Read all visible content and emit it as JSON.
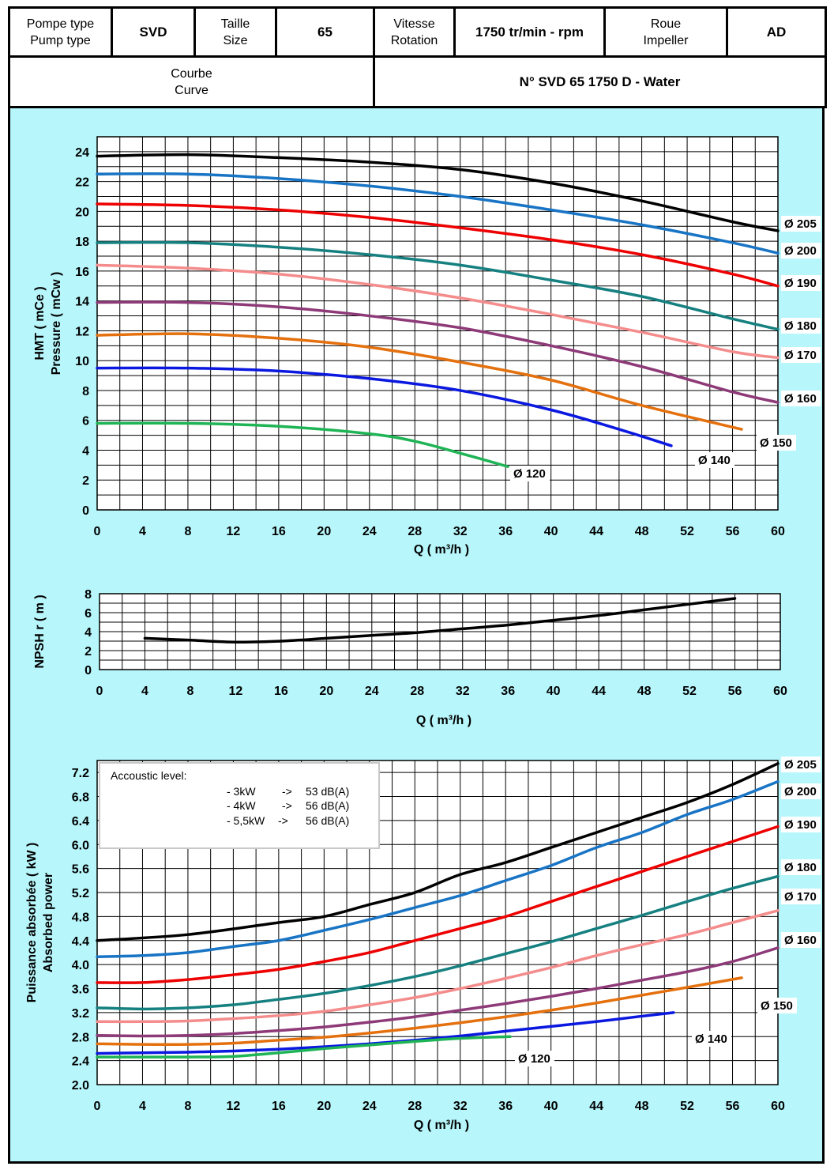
{
  "header": {
    "pump_type_label_fr": "Pompe type",
    "pump_type_label_en": "Pump type",
    "pump_type": "SVD",
    "size_label_fr": "Taille",
    "size_label_en": "Size",
    "size": "65",
    "speed_label_fr": "Vitesse",
    "speed_label_en": "Rotation",
    "speed": "1750 tr/min - rpm",
    "impeller_label_fr": "Roue",
    "impeller_label_en": "Impeller",
    "impeller": "AD",
    "curve_label_fr": "Courbe",
    "curve_label_en": "Curve",
    "curve_name": "N° SVD 65 1750 D - Water"
  },
  "colors": {
    "background": "#b7f6fb",
    "d205": "#000000",
    "d200": "#1874c4",
    "d190": "#ee0000",
    "d180": "#168080",
    "d170": "#f48c8c",
    "d160": "#8e3a78",
    "d150": "#e4700e",
    "d140": "#0a18e0",
    "d120": "#1fb455"
  },
  "acoustic_box": {
    "title": "Accoustic level:",
    "rows": [
      {
        "power": "- 3kW",
        "arrow": "->",
        "level": "53 dB(A)"
      },
      {
        "power": "- 4kW",
        "arrow": "->",
        "level": "56 dB(A)"
      },
      {
        "power": "- 5,5kW",
        "arrow": "->",
        "level": "56 dB(A)"
      }
    ]
  },
  "chart_data": [
    {
      "type": "line",
      "title": "",
      "xlabel": "Q ( m³/h )",
      "ylabel": [
        "HMT ( mCe )",
        "Pressure ( mCw )"
      ],
      "xlim": [
        0,
        60
      ],
      "ylim": [
        0,
        25
      ],
      "xticks": [
        0,
        4,
        8,
        12,
        16,
        20,
        24,
        28,
        32,
        36,
        40,
        44,
        48,
        52,
        56,
        60
      ],
      "yticks": [
        0,
        2,
        4,
        6,
        8,
        10,
        12,
        14,
        16,
        18,
        20,
        22,
        24
      ],
      "series": [
        {
          "name": "Ø 205",
          "color_key": "d205",
          "x": [
            0,
            8,
            16,
            24,
            32,
            40,
            48,
            56,
            60
          ],
          "y": [
            23.7,
            23.8,
            23.6,
            23.3,
            22.8,
            21.9,
            20.7,
            19.3,
            18.7
          ]
        },
        {
          "name": "Ø 200",
          "color_key": "d200",
          "x": [
            0,
            8,
            16,
            24,
            32,
            40,
            48,
            56,
            60
          ],
          "y": [
            22.5,
            22.5,
            22.2,
            21.7,
            21.0,
            20.1,
            19.1,
            17.9,
            17.2
          ]
        },
        {
          "name": "Ø 190",
          "color_key": "d190",
          "x": [
            0,
            8,
            16,
            24,
            32,
            40,
            48,
            56,
            60
          ],
          "y": [
            20.5,
            20.4,
            20.1,
            19.6,
            18.9,
            18.1,
            17.1,
            15.8,
            15.0
          ]
        },
        {
          "name": "Ø 180",
          "color_key": "d180",
          "x": [
            0,
            8,
            16,
            24,
            32,
            40,
            48,
            56,
            60
          ],
          "y": [
            17.9,
            17.9,
            17.6,
            17.1,
            16.4,
            15.4,
            14.3,
            12.8,
            12.1
          ]
        },
        {
          "name": "Ø 170",
          "color_key": "d170",
          "x": [
            0,
            8,
            16,
            24,
            32,
            40,
            48,
            56,
            60
          ],
          "y": [
            16.4,
            16.2,
            15.8,
            15.1,
            14.2,
            13.1,
            11.9,
            10.6,
            10.2
          ]
        },
        {
          "name": "Ø 160",
          "color_key": "d160",
          "x": [
            0,
            8,
            16,
            24,
            32,
            40,
            48,
            56,
            60
          ],
          "y": [
            13.9,
            13.9,
            13.6,
            13.0,
            12.2,
            11.0,
            9.6,
            7.9,
            7.2
          ]
        },
        {
          "name": "Ø 150",
          "color_key": "d150",
          "x": [
            0,
            8,
            16,
            24,
            32,
            40,
            48,
            56.8
          ],
          "y": [
            11.7,
            11.8,
            11.5,
            10.9,
            9.9,
            8.7,
            7.0,
            5.4
          ]
        },
        {
          "name": "Ø 140",
          "color_key": "d140",
          "x": [
            0,
            8,
            16,
            24,
            32,
            40,
            46,
            50.6
          ],
          "y": [
            9.5,
            9.5,
            9.3,
            8.8,
            8.0,
            6.7,
            5.4,
            4.3
          ]
        },
        {
          "name": "Ø 120",
          "color_key": "d120",
          "x": [
            0,
            8,
            16,
            24,
            28,
            32,
            36.2
          ],
          "y": [
            5.8,
            5.8,
            5.6,
            5.1,
            4.6,
            3.8,
            2.9
          ]
        }
      ]
    },
    {
      "type": "line",
      "title": "",
      "xlabel": "Q ( m³/h )",
      "ylabel": [
        "NPSH r ( m )"
      ],
      "xlim": [
        0,
        60
      ],
      "ylim": [
        0,
        8
      ],
      "xticks": [
        0,
        4,
        8,
        12,
        16,
        20,
        24,
        28,
        32,
        36,
        40,
        44,
        48,
        52,
        56,
        60
      ],
      "yticks": [
        0,
        2,
        4,
        6,
        8
      ],
      "series": [
        {
          "color_key": "d205",
          "x": [
            4,
            8,
            12,
            16,
            20,
            24,
            28,
            32,
            36,
            40,
            44,
            48,
            52,
            56
          ],
          "y": [
            3.3,
            3.1,
            2.9,
            3.0,
            3.3,
            3.6,
            3.9,
            4.3,
            4.7,
            5.2,
            5.7,
            6.3,
            6.9,
            7.5
          ]
        }
      ]
    },
    {
      "type": "line",
      "title": "",
      "xlabel": "Q ( m³/h )",
      "ylabel": [
        "Puissance absorbée ( kW )",
        "Absorbed power"
      ],
      "xlim": [
        0,
        60
      ],
      "ylim": [
        2.0,
        7.4
      ],
      "xticks": [
        0,
        4,
        8,
        12,
        16,
        20,
        24,
        28,
        32,
        36,
        40,
        44,
        48,
        52,
        56,
        60
      ],
      "yticks": [
        2.0,
        2.4,
        2.8,
        3.2,
        3.6,
        4.0,
        4.4,
        4.8,
        5.2,
        5.6,
        6.0,
        6.4,
        6.8,
        7.2
      ],
      "series": [
        {
          "name": "Ø 205",
          "color_key": "d205",
          "x": [
            0,
            8,
            16,
            20,
            24,
            28,
            32,
            36,
            40,
            44,
            48,
            52,
            56,
            60
          ],
          "y": [
            4.4,
            4.5,
            4.7,
            4.8,
            5.0,
            5.2,
            5.5,
            5.7,
            5.95,
            6.2,
            6.45,
            6.7,
            7.0,
            7.35
          ]
        },
        {
          "name": "Ø 200",
          "color_key": "d200",
          "x": [
            0,
            4,
            8,
            12,
            16,
            20,
            24,
            28,
            32,
            36,
            40,
            44,
            48,
            52,
            56,
            60
          ],
          "y": [
            4.13,
            4.15,
            4.2,
            4.3,
            4.4,
            4.57,
            4.75,
            4.95,
            5.15,
            5.4,
            5.65,
            5.95,
            6.2,
            6.5,
            6.75,
            7.05
          ]
        },
        {
          "name": "Ø 190",
          "color_key": "d190",
          "x": [
            0,
            4,
            8,
            12,
            16,
            20,
            24,
            28,
            32,
            36,
            40,
            44,
            48,
            52,
            56,
            60
          ],
          "y": [
            3.7,
            3.7,
            3.75,
            3.83,
            3.92,
            4.05,
            4.2,
            4.4,
            4.6,
            4.8,
            5.05,
            5.3,
            5.55,
            5.8,
            6.05,
            6.3
          ]
        },
        {
          "name": "Ø 180",
          "color_key": "d180",
          "x": [
            0,
            4,
            8,
            12,
            16,
            20,
            24,
            28,
            32,
            36,
            40,
            44,
            48,
            52,
            56,
            60
          ],
          "y": [
            3.28,
            3.26,
            3.28,
            3.33,
            3.42,
            3.52,
            3.65,
            3.8,
            3.98,
            4.18,
            4.38,
            4.6,
            4.82,
            5.05,
            5.27,
            5.47
          ]
        },
        {
          "name": "Ø 170",
          "color_key": "d170",
          "x": [
            0,
            4,
            8,
            12,
            16,
            20,
            24,
            28,
            32,
            36,
            40,
            44,
            48,
            52,
            56,
            60
          ],
          "y": [
            3.05,
            3.05,
            3.06,
            3.1,
            3.15,
            3.22,
            3.33,
            3.45,
            3.6,
            3.77,
            3.95,
            4.15,
            4.33,
            4.5,
            4.7,
            4.9
          ]
        },
        {
          "name": "Ø 160",
          "color_key": "d160",
          "x": [
            0,
            4,
            8,
            12,
            16,
            20,
            24,
            28,
            32,
            36,
            40,
            44,
            48,
            52,
            56,
            60
          ],
          "y": [
            2.82,
            2.81,
            2.82,
            2.85,
            2.9,
            2.96,
            3.04,
            3.13,
            3.24,
            3.35,
            3.47,
            3.6,
            3.74,
            3.88,
            4.05,
            4.28
          ]
        },
        {
          "name": "Ø 150",
          "color_key": "d150",
          "x": [
            0,
            4,
            8,
            12,
            16,
            20,
            24,
            28,
            32,
            36,
            40,
            44,
            48,
            52,
            56.8
          ],
          "y": [
            2.68,
            2.67,
            2.67,
            2.69,
            2.74,
            2.79,
            2.86,
            2.94,
            3.03,
            3.13,
            3.24,
            3.36,
            3.49,
            3.62,
            3.78
          ]
        },
        {
          "name": "Ø 140",
          "color_key": "d140",
          "x": [
            0,
            4,
            8,
            12,
            16,
            20,
            24,
            28,
            32,
            36,
            40,
            44,
            48,
            50.8
          ],
          "y": [
            2.52,
            2.53,
            2.54,
            2.56,
            2.59,
            2.63,
            2.68,
            2.74,
            2.81,
            2.89,
            2.97,
            3.05,
            3.14,
            3.2
          ]
        },
        {
          "name": "Ø 120",
          "color_key": "d120",
          "x": [
            0,
            4,
            8,
            12,
            16,
            20,
            24,
            28,
            32,
            36.4
          ],
          "y": [
            2.46,
            2.46,
            2.46,
            2.47,
            2.53,
            2.6,
            2.66,
            2.72,
            2.77,
            2.8
          ]
        }
      ]
    }
  ]
}
